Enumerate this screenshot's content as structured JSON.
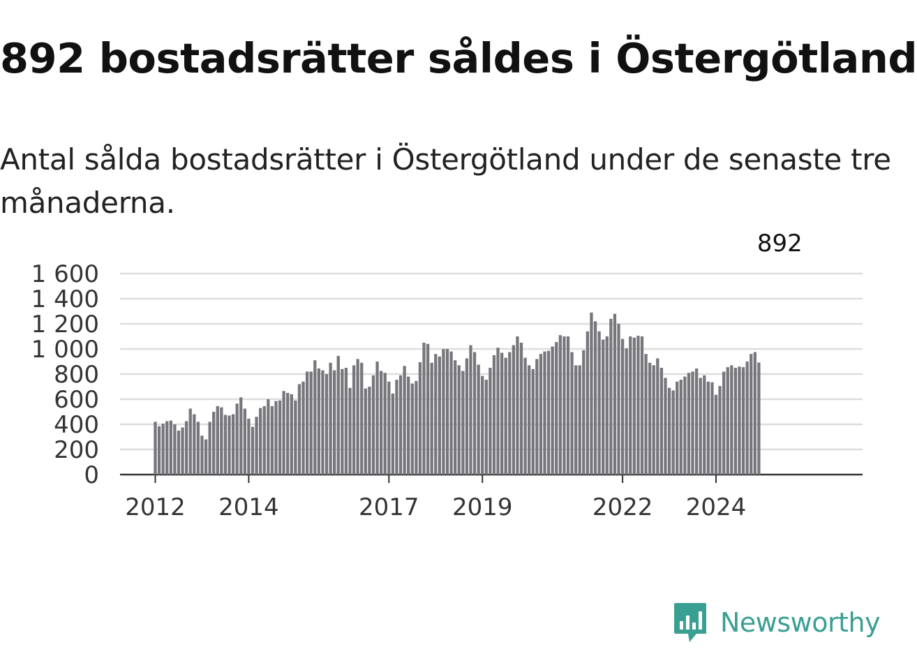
{
  "title": "892 bostadsrätter såldes i Östergötland",
  "subtitle": "Antal sålda bostadsrätter i Östergötland under de senaste tre månaderna.",
  "brand": {
    "name": "Newsworthy",
    "icon": "newsworthy-logo-icon"
  },
  "colors": {
    "bar": "#77767c",
    "highlight": "#2a9d8f",
    "grid": "#dddddd",
    "axis": "#333333",
    "brand": "#3a9f93"
  },
  "chart_data": {
    "type": "bar",
    "title": "",
    "xlabel": "",
    "ylabel": "",
    "ylim": [
      0,
      1600
    ],
    "y_ticks": [
      {
        "value": 0,
        "label": "0"
      },
      {
        "value": 200,
        "label": "200"
      },
      {
        "value": 400,
        "label": "400"
      },
      {
        "value": 600,
        "label": "600"
      },
      {
        "value": 800,
        "label": "800"
      },
      {
        "value": 1000,
        "label": "1 000"
      },
      {
        "value": 1200,
        "label": "1 200"
      },
      {
        "value": 1400,
        "label": "1 400"
      },
      {
        "value": 1600,
        "label": "1 600"
      }
    ],
    "x_ticks": [
      {
        "bar_index": 0,
        "label": "2012"
      },
      {
        "bar_index": 24,
        "label": "2014"
      },
      {
        "bar_index": 60,
        "label": "2017"
      },
      {
        "bar_index": 84,
        "label": "2019"
      },
      {
        "bar_index": 120,
        "label": "2022"
      },
      {
        "bar_index": 144,
        "label": "2024"
      }
    ],
    "values": [
      420,
      385,
      405,
      425,
      430,
      400,
      350,
      375,
      425,
      525,
      480,
      420,
      310,
      280,
      420,
      500,
      545,
      535,
      475,
      470,
      480,
      565,
      615,
      525,
      445,
      380,
      460,
      530,
      545,
      600,
      545,
      585,
      590,
      665,
      650,
      640,
      590,
      720,
      740,
      820,
      820,
      910,
      845,
      830,
      800,
      890,
      830,
      945,
      840,
      850,
      690,
      870,
      920,
      890,
      685,
      700,
      790,
      900,
      825,
      810,
      740,
      645,
      755,
      790,
      865,
      780,
      725,
      745,
      895,
      1050,
      1040,
      890,
      960,
      940,
      1000,
      1000,
      980,
      910,
      870,
      825,
      925,
      1030,
      975,
      875,
      785,
      755,
      850,
      950,
      1010,
      970,
      930,
      975,
      1030,
      1100,
      1050,
      930,
      870,
      840,
      920,
      960,
      980,
      985,
      1020,
      1055,
      1110,
      1100,
      1100,
      975,
      870,
      870,
      990,
      1140,
      1290,
      1220,
      1140,
      1075,
      1100,
      1240,
      1280,
      1200,
      1080,
      1005,
      1100,
      1090,
      1105,
      1100,
      960,
      890,
      870,
      925,
      850,
      770,
      690,
      670,
      740,
      755,
      780,
      810,
      820,
      845,
      770,
      790,
      740,
      735,
      635,
      705,
      820,
      855,
      870,
      850,
      860,
      855,
      900,
      960,
      975,
      892
    ],
    "highlight_index": 160,
    "highlight_label": "892"
  }
}
